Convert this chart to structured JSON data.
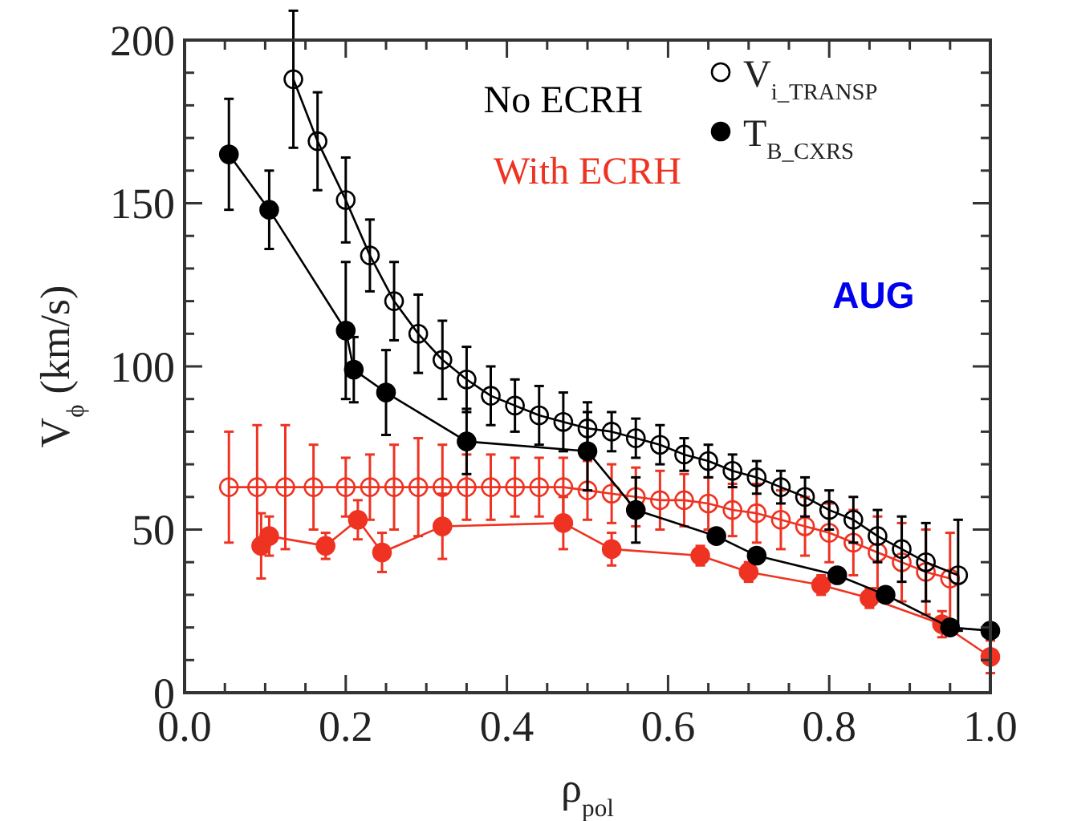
{
  "chart_data": {
    "type": "line",
    "xlabel": "ρ$_{pol}$",
    "ylabel": "V$_{ϕ}$ (km/s)",
    "xlim": [
      0,
      1
    ],
    "ylim": [
      0,
      200
    ],
    "xticks": [
      {
        "value": 0,
        "label": "0.0"
      },
      {
        "value": 0.05,
        "label": null
      },
      {
        "value": 0.1,
        "label": null
      },
      {
        "value": 0.15,
        "label": null
      },
      {
        "value": 0.2,
        "label": "0.2"
      },
      {
        "value": 0.25,
        "label": null
      },
      {
        "value": 0.3,
        "label": null
      },
      {
        "value": 0.35,
        "label": null
      },
      {
        "value": 0.4,
        "label": "0.4"
      },
      {
        "value": 0.45,
        "label": null
      },
      {
        "value": 0.5,
        "label": null
      },
      {
        "value": 0.55,
        "label": null
      },
      {
        "value": 0.6,
        "label": "0.6"
      },
      {
        "value": 0.65,
        "label": null
      },
      {
        "value": 0.7,
        "label": null
      },
      {
        "value": 0.75,
        "label": null
      },
      {
        "value": 0.8,
        "label": "0.8"
      },
      {
        "value": 0.85,
        "label": null
      },
      {
        "value": 0.9,
        "label": null
      },
      {
        "value": 0.95,
        "label": null
      },
      {
        "value": 1,
        "label": "1.0"
      }
    ],
    "yticks": [
      0,
      {
        "value": 10,
        "label": null
      },
      {
        "value": 20,
        "label": null
      },
      {
        "value": 30,
        "label": null
      },
      {
        "value": 40,
        "label": null
      },
      50,
      {
        "value": 60,
        "label": null
      },
      {
        "value": 70,
        "label": null
      },
      {
        "value": 80,
        "label": null
      },
      {
        "value": 90,
        "label": null
      },
      100,
      {
        "value": 110,
        "label": null
      },
      {
        "value": 120,
        "label": null
      },
      {
        "value": 130,
        "label": null
      },
      {
        "value": 140,
        "label": null
      },
      150,
      {
        "value": 160,
        "label": null
      },
      {
        "value": 170,
        "label": null
      },
      {
        "value": 180,
        "label": null
      },
      {
        "value": 190,
        "label": null
      },
      200
    ],
    "grid": false,
    "legend": "top right",
    "marker": "circle",
    "line_style": "solid",
    "annotations": [
      "No ECRH",
      "With ECRH",
      "AUG"
    ],
    "series": [
      {
        "name": "V$_{i_TRANSP}$",
        "color": "#000000",
        "x": [
          0.135,
          0.165,
          0.2,
          0.23,
          0.26,
          0.29,
          0.32,
          0.35,
          0.38,
          0.41,
          0.44,
          0.47,
          0.5,
          0.53,
          0.56,
          0.59,
          0.62,
          0.65,
          0.68,
          0.71,
          0.74,
          0.77,
          0.8,
          0.83,
          0.86,
          0.89,
          0.92,
          0.96
        ],
        "values": [
          188,
          169,
          151,
          134,
          120,
          110,
          102,
          96,
          91,
          88,
          85,
          83,
          81,
          80,
          78,
          76,
          73,
          71,
          68,
          66,
          63,
          60,
          56,
          53,
          48,
          44,
          40,
          36
        ],
        "errors": [
          21,
          15,
          13,
          11,
          12,
          12,
          12,
          10,
          9,
          8,
          9,
          9,
          8,
          6,
          6,
          6,
          5,
          5,
          5,
          5,
          5,
          6,
          6,
          7,
          8,
          10,
          12,
          17
        ]
      },
      {
        "name": "T$_{B_CXRS}$",
        "color": "#000000",
        "x": [
          0.055,
          0.105,
          0.2,
          0.21,
          0.25,
          0.35,
          0.5,
          0.56,
          0.66,
          0.71,
          0.81,
          0.87,
          0.95,
          1.0
        ],
        "values": [
          165,
          148,
          111,
          99,
          92,
          77,
          74,
          56,
          48,
          42,
          36,
          30,
          20,
          19
        ],
        "errors": [
          17,
          12,
          21,
          10,
          13,
          10,
          12,
          10,
          null,
          null,
          null,
          null,
          null,
          null
        ]
      },
      {
        "color": "#ee3322",
        "x": [
          0.055,
          0.09,
          0.125,
          0.16,
          0.2,
          0.23,
          0.26,
          0.29,
          0.32,
          0.35,
          0.38,
          0.41,
          0.44,
          0.47,
          0.5,
          0.53,
          0.56,
          0.59,
          0.62,
          0.65,
          0.68,
          0.71,
          0.74,
          0.77,
          0.8,
          0.83,
          0.86,
          0.89,
          0.92,
          0.95
        ],
        "values": [
          63,
          63,
          63,
          63,
          63,
          63,
          63,
          63,
          63,
          63,
          63,
          63,
          63,
          63,
          62,
          61,
          60,
          59,
          59,
          58,
          56,
          55,
          53,
          51,
          49,
          46,
          43,
          40,
          37,
          35
        ],
        "errors": [
          17,
          19,
          19,
          13,
          9,
          10,
          13,
          15,
          13,
          10,
          10,
          9,
          9,
          9,
          9,
          9,
          9,
          9,
          8,
          8,
          8,
          9,
          9,
          9,
          9,
          10,
          11,
          12,
          13,
          14
        ]
      },
      {
        "color": "#ee3322",
        "x": [
          0.095,
          0.105,
          0.175,
          0.215,
          0.245,
          0.32,
          0.47,
          0.53,
          0.64,
          0.7,
          0.79,
          0.85,
          0.94,
          1.0
        ],
        "values": [
          45,
          48,
          45,
          53,
          43,
          51,
          52,
          44,
          42,
          37,
          33,
          29,
          21,
          11
        ],
        "errors": [
          10,
          6,
          4,
          6,
          6,
          10,
          8,
          5,
          3,
          3,
          3,
          3,
          4,
          5
        ]
      }
    ]
  }
}
